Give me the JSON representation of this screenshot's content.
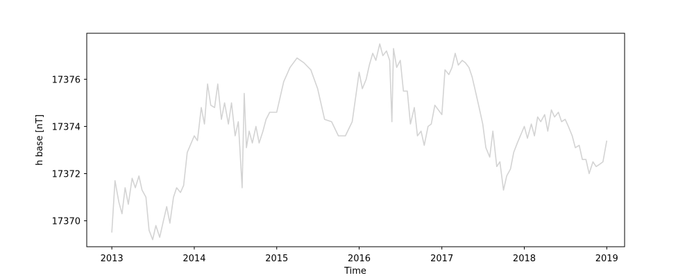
{
  "chart_data": {
    "type": "line",
    "title": "",
    "xlabel": "Time",
    "ylabel": "h base [nT]",
    "xlim": [
      "2012-09-12",
      "2019-03-21"
    ],
    "ylim": [
      17368.9,
      17377.95
    ],
    "x_ticks": [
      "2013",
      "2014",
      "2015",
      "2016",
      "2017",
      "2018",
      "2019"
    ],
    "y_ticks": [
      17370,
      17372,
      17374,
      17376
    ],
    "grid": false,
    "legend": "none",
    "series": [
      {
        "color": "#d3d3d3",
        "x": [
          "2013-01-01",
          "2013-01-15",
          "2013-02-01",
          "2013-02-15",
          "2013-03-01",
          "2013-03-15",
          "2013-04-01",
          "2013-04-15",
          "2013-05-01",
          "2013-05-15",
          "2013-06-01",
          "2013-06-15",
          "2013-07-01",
          "2013-07-15",
          "2013-08-01",
          "2013-08-15",
          "2013-09-01",
          "2013-09-15",
          "2013-10-01",
          "2013-10-15",
          "2013-11-01",
          "2013-11-15",
          "2013-12-01",
          "2014-01-01",
          "2014-01-15",
          "2014-02-01",
          "2014-02-15",
          "2014-03-01",
          "2014-03-15",
          "2014-04-01",
          "2014-04-15",
          "2014-05-01",
          "2014-05-15",
          "2014-06-01",
          "2014-06-15",
          "2014-07-01",
          "2014-07-15",
          "2014-08-01",
          "2014-08-10",
          "2014-08-20",
          "2014-09-01",
          "2014-09-15",
          "2014-10-01",
          "2014-10-15",
          "2014-11-01",
          "2014-11-15",
          "2014-12-01",
          "2015-01-01",
          "2015-02-01",
          "2015-03-01",
          "2015-04-01",
          "2015-05-01",
          "2015-06-01",
          "2015-07-01",
          "2015-08-01",
          "2015-09-01",
          "2015-10-01",
          "2015-11-01",
          "2015-12-01",
          "2016-01-01",
          "2016-01-15",
          "2016-02-01",
          "2016-02-15",
          "2016-03-01",
          "2016-03-15",
          "2016-04-01",
          "2016-04-15",
          "2016-05-01",
          "2016-05-15",
          "2016-05-25",
          "2016-06-01",
          "2016-06-15",
          "2016-07-01",
          "2016-07-15",
          "2016-08-01",
          "2016-08-15",
          "2016-09-01",
          "2016-09-15",
          "2016-10-01",
          "2016-10-15",
          "2016-11-01",
          "2016-11-15",
          "2016-12-01",
          "2017-01-01",
          "2017-01-15",
          "2017-02-01",
          "2017-02-15",
          "2017-03-01",
          "2017-03-15",
          "2017-04-01",
          "2017-04-15",
          "2017-05-01",
          "2017-05-15",
          "2017-06-01",
          "2017-06-15",
          "2017-07-01",
          "2017-07-15",
          "2017-08-01",
          "2017-08-15",
          "2017-09-01",
          "2017-09-15",
          "2017-10-01",
          "2017-10-15",
          "2017-11-01",
          "2017-11-15",
          "2017-12-01",
          "2018-01-01",
          "2018-01-15",
          "2018-02-01",
          "2018-02-15",
          "2018-03-01",
          "2018-03-15",
          "2018-04-01",
          "2018-04-15",
          "2018-05-01",
          "2018-05-15",
          "2018-06-01",
          "2018-06-15",
          "2018-07-01",
          "2018-07-15",
          "2018-08-01",
          "2018-08-15",
          "2018-09-01",
          "2018-09-15",
          "2018-10-01",
          "2018-10-15",
          "2018-11-01",
          "2018-11-15",
          "2018-12-01",
          "2018-12-15",
          "2019-01-01"
        ],
        "y": [
          17369.5,
          17371.7,
          17370.8,
          17370.3,
          17371.4,
          17370.7,
          17371.8,
          17371.4,
          17371.9,
          17371.3,
          17371.0,
          17369.6,
          17369.2,
          17369.8,
          17369.3,
          17369.9,
          17370.6,
          17369.9,
          17371.0,
          17371.4,
          17371.2,
          17371.5,
          17372.9,
          17373.6,
          17373.4,
          17374.8,
          17374.1,
          17375.8,
          17374.9,
          17374.8,
          17375.8,
          17374.3,
          17375.0,
          17374.1,
          17375.0,
          17373.6,
          17374.2,
          17371.4,
          17375.4,
          17373.1,
          17373.8,
          17373.3,
          17374.0,
          17373.3,
          17373.8,
          17374.3,
          17374.6,
          17374.6,
          17375.9,
          17376.5,
          17376.9,
          17376.7,
          17376.4,
          17375.6,
          17374.3,
          17374.2,
          17373.6,
          17373.6,
          17374.2,
          17376.3,
          17375.6,
          17376.0,
          17376.6,
          17377.1,
          17376.8,
          17377.5,
          17377.0,
          17377.2,
          17376.8,
          17374.2,
          17377.3,
          17376.5,
          17376.8,
          17375.5,
          17375.5,
          17374.1,
          17374.8,
          17373.6,
          17373.8,
          17373.2,
          17374.0,
          17374.1,
          17374.9,
          17374.5,
          17376.4,
          17376.2,
          17376.5,
          17377.1,
          17376.6,
          17376.8,
          17376.7,
          17376.5,
          17376.1,
          17375.4,
          17374.8,
          17374.1,
          17373.1,
          17372.7,
          17373.8,
          17372.3,
          17372.5,
          17371.3,
          17371.9,
          17372.2,
          17372.9,
          17373.3,
          17374.0,
          17373.5,
          17374.1,
          17373.6,
          17374.4,
          17374.2,
          17374.5,
          17373.8,
          17374.7,
          17374.4,
          17374.6,
          17374.2,
          17374.3,
          17374.0,
          17373.6,
          17373.1,
          17373.2,
          17372.6,
          17372.6,
          17372.0,
          17372.5,
          17372.3,
          17372.4,
          17372.5,
          17373.4
        ]
      }
    ]
  }
}
